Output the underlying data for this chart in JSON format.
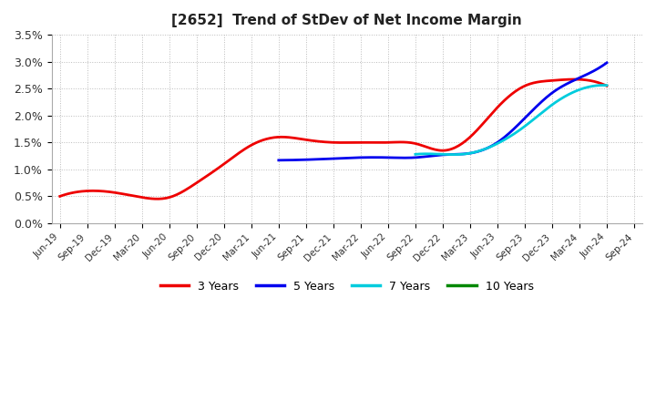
{
  "title": "[2652]  Trend of StDev of Net Income Margin",
  "background_color": "#ffffff",
  "grid_color": "#bbbbbb",
  "ylim": [
    0.0,
    0.035
  ],
  "yticks": [
    0.0,
    0.005,
    0.01,
    0.015,
    0.02,
    0.025,
    0.03,
    0.035
  ],
  "ytick_labels": [
    "0.0%",
    "0.5%",
    "1.0%",
    "1.5%",
    "2.0%",
    "2.5%",
    "3.0%",
    "3.5%"
  ],
  "x_labels": [
    "Jun-19",
    "Sep-19",
    "Dec-19",
    "Mar-20",
    "Jun-20",
    "Sep-20",
    "Dec-20",
    "Mar-21",
    "Jun-21",
    "Sep-21",
    "Dec-21",
    "Mar-22",
    "Jun-22",
    "Sep-22",
    "Dec-22",
    "Mar-23",
    "Jun-23",
    "Sep-23",
    "Dec-23",
    "Mar-24",
    "Jun-24",
    "Sep-24"
  ],
  "series": {
    "3 Years": {
      "color": "#ee0000",
      "values": [
        0.005,
        0.006,
        0.0057,
        0.0048,
        0.0048,
        0.0075,
        0.011,
        0.0145,
        0.016,
        0.0155,
        0.015,
        0.015,
        0.015,
        0.0148,
        0.0135,
        0.016,
        0.0215,
        0.0255,
        0.0265,
        0.0267,
        0.0255,
        null
      ]
    },
    "5 Years": {
      "color": "#0000ee",
      "values": [
        null,
        null,
        null,
        null,
        null,
        null,
        null,
        null,
        0.0117,
        0.0118,
        0.012,
        0.0122,
        0.0122,
        0.0122,
        0.0127,
        0.013,
        0.015,
        0.0195,
        0.0242,
        0.027,
        0.0298,
        null
      ]
    },
    "7 Years": {
      "color": "#00ccdd",
      "values": [
        null,
        null,
        null,
        null,
        null,
        null,
        null,
        null,
        null,
        null,
        null,
        null,
        null,
        0.0128,
        0.0128,
        0.013,
        0.0148,
        0.018,
        0.022,
        0.0248,
        0.0256,
        null
      ]
    },
    "10 Years": {
      "color": "#008800",
      "values": [
        null,
        null,
        null,
        null,
        null,
        null,
        null,
        null,
        null,
        null,
        null,
        null,
        null,
        null,
        null,
        null,
        null,
        null,
        null,
        null,
        null,
        null
      ]
    }
  },
  "legend_order": [
    "3 Years",
    "5 Years",
    "7 Years",
    "10 Years"
  ]
}
